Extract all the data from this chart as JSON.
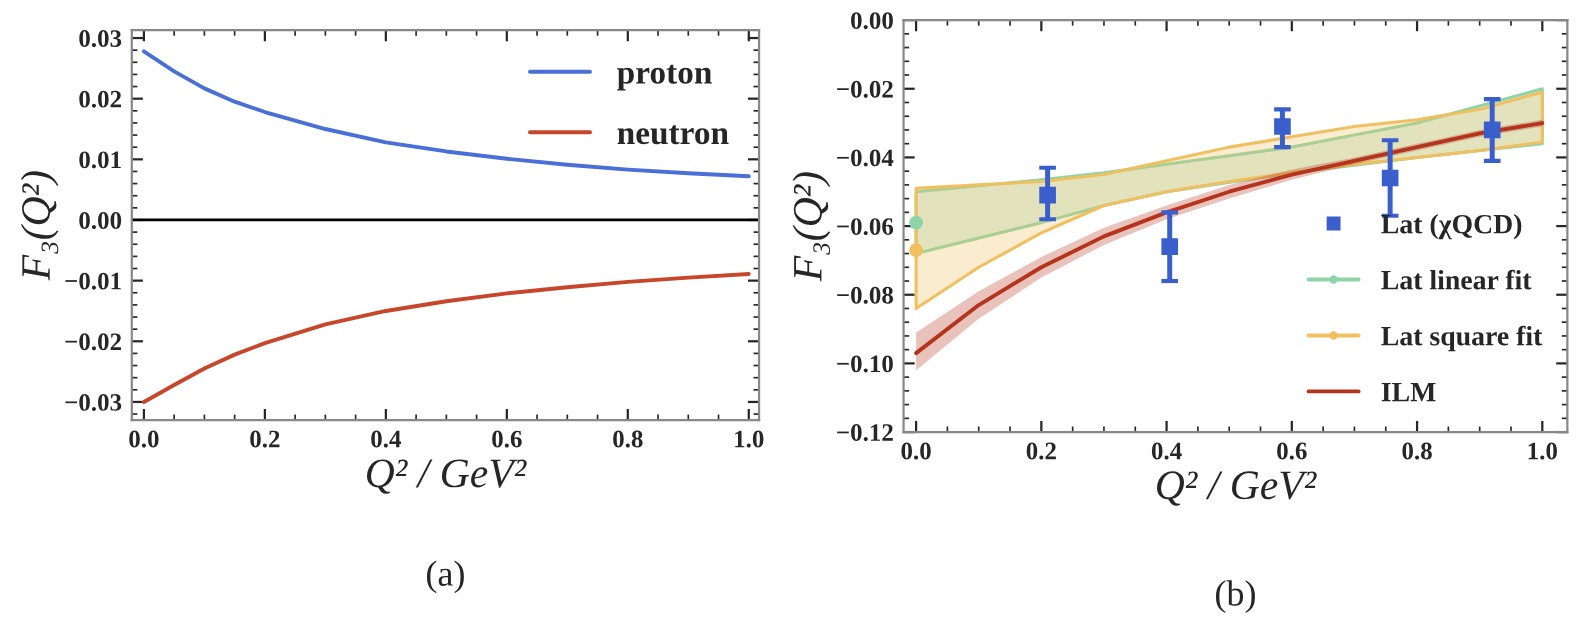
{
  "chart_data": [
    {
      "type": "line",
      "xlabel": "Q² / GeV²",
      "ylabel": "F₃(Q²)",
      "xlim": [
        -0.02,
        1.017
      ],
      "ylim": [
        -0.033,
        0.0313
      ],
      "xticks": [
        {
          "value": 0,
          "label": "0.0"
        },
        {
          "value": 0.2,
          "label": "0.2"
        },
        {
          "value": 0.4,
          "label": "0.4"
        },
        {
          "value": 0.6,
          "label": "0.6"
        },
        {
          "value": 0.8,
          "label": "0.8"
        },
        {
          "value": 1,
          "label": "1.0"
        }
      ],
      "yticks": [
        {
          "value": -0.03,
          "label": "−0.03"
        },
        {
          "value": -0.02,
          "label": "−0.02"
        },
        {
          "value": -0.01,
          "label": "−0.01"
        },
        {
          "value": 0,
          "label": "0.00"
        },
        {
          "value": 0.01,
          "label": "0.01"
        },
        {
          "value": 0.02,
          "label": "0.02"
        },
        {
          "value": 0.03,
          "label": "0.03"
        }
      ],
      "x": [
        0,
        0.05,
        0.1,
        0.15,
        0.2,
        0.3,
        0.4,
        0.5,
        0.6,
        0.7,
        0.8,
        0.9,
        1.0
      ],
      "series": [
        {
          "name": "proton",
          "color": "#4a6fd6",
          "values": [
            0.0278,
            0.0245,
            0.0217,
            0.0195,
            0.0178,
            0.015,
            0.0128,
            0.0113,
            0.0101,
            0.0091,
            0.0083,
            0.0077,
            0.0072
          ]
        },
        {
          "name": "neutron",
          "color": "#c8462a",
          "values": [
            -0.03,
            -0.0272,
            -0.0245,
            -0.0222,
            -0.0203,
            -0.0172,
            -0.015,
            -0.0134,
            -0.0121,
            -0.0111,
            -0.0102,
            -0.0095,
            -0.0089
          ]
        }
      ],
      "ref_lines": [
        {
          "axis": "y",
          "value": 0,
          "color": "#000000"
        }
      ],
      "legend": "top right",
      "grid": false,
      "annotations": [
        "(a)"
      ]
    },
    {
      "type": "line",
      "xlabel": "Q² / GeV²",
      "ylabel": "F₃(Q²)",
      "xlim": [
        -0.02,
        1.04
      ],
      "ylim": [
        -0.12,
        0
      ],
      "xticks": [
        {
          "value": 0,
          "label": "0.0"
        },
        {
          "value": 0.2,
          "label": "0.2"
        },
        {
          "value": 0.4,
          "label": "0.4"
        },
        {
          "value": 0.6,
          "label": "0.6"
        },
        {
          "value": 0.8,
          "label": "0.8"
        },
        {
          "value": 1,
          "label": "1.0"
        }
      ],
      "yticks": [
        {
          "value": -0.12,
          "label": "−0.12"
        },
        {
          "value": -0.1,
          "label": "−0.10"
        },
        {
          "value": -0.08,
          "label": "−0.08"
        },
        {
          "value": -0.06,
          "label": "−0.06"
        },
        {
          "value": -0.04,
          "label": "−0.04"
        },
        {
          "value": -0.02,
          "label": "−0.02"
        },
        {
          "value": 0,
          "label": "0.00"
        }
      ],
      "series": [
        {
          "name": "Lat (χQCD)",
          "type": "scatter",
          "marker": "square",
          "color": "#3a5fcd",
          "x": [
            0.21,
            0.405,
            0.585,
            0.757,
            0.92
          ],
          "values": [
            -0.051,
            -0.066,
            -0.031,
            -0.046,
            -0.032
          ],
          "errors": [
            [
              -0.058,
              -0.043
            ],
            [
              -0.076,
              -0.056
            ],
            [
              -0.037,
              -0.026
            ],
            [
              -0.057,
              -0.035
            ],
            [
              -0.041,
              -0.023
            ]
          ]
        },
        {
          "name": "Lat linear fit",
          "type": "line",
          "marker": "circle",
          "color": "#8ed4a8",
          "x": [
            0,
            0.2,
            0.3,
            0.4,
            0.6,
            0.8,
            1.0
          ],
          "values": [
            -0.059,
            null,
            null,
            null,
            null,
            null,
            null
          ],
          "lower": [
            -0.068,
            -0.059,
            -0.054,
            -0.05,
            -0.0445,
            -0.04,
            -0.036
          ],
          "upper": [
            -0.05,
            -0.0465,
            -0.0445,
            -0.042,
            -0.037,
            -0.03,
            -0.02
          ]
        },
        {
          "name": "Lat square fit",
          "type": "line",
          "marker": "circle",
          "color": "#f0c060",
          "x": [
            0,
            0.1,
            0.2,
            0.3,
            0.4,
            0.5,
            0.6,
            0.7,
            0.8,
            0.9,
            1.0
          ],
          "values": [
            -0.067,
            null,
            null,
            null,
            null,
            null,
            null,
            null,
            null,
            null,
            null
          ],
          "lower": [
            -0.084,
            -0.072,
            -0.062,
            -0.054,
            -0.05,
            -0.047,
            -0.0445,
            -0.042,
            -0.04,
            -0.038,
            -0.0355
          ],
          "upper": [
            -0.049,
            -0.048,
            -0.047,
            -0.045,
            -0.041,
            -0.037,
            -0.034,
            -0.031,
            -0.029,
            -0.026,
            -0.021
          ]
        },
        {
          "name": "ILM",
          "type": "line",
          "marker": "none",
          "color": "#b5341e",
          "x": [
            0,
            0.1,
            0.2,
            0.3,
            0.4,
            0.5,
            0.6,
            0.7,
            0.8,
            0.9,
            1.0
          ],
          "values": [
            -0.097,
            -0.083,
            -0.072,
            -0.063,
            -0.056,
            -0.05,
            -0.045,
            -0.041,
            -0.037,
            -0.033,
            -0.03
          ],
          "lower": [
            -0.102,
            -0.087,
            -0.075,
            -0.0655,
            -0.058,
            -0.052,
            -0.0465,
            -0.042,
            -0.038,
            -0.034,
            -0.031
          ],
          "upper": [
            -0.091,
            -0.079,
            -0.069,
            -0.0605,
            -0.054,
            -0.048,
            -0.0435,
            -0.04,
            -0.036,
            -0.032,
            -0.029
          ]
        }
      ],
      "legend": "bottom right",
      "grid": false,
      "annotations": [
        "(b)"
      ]
    }
  ]
}
